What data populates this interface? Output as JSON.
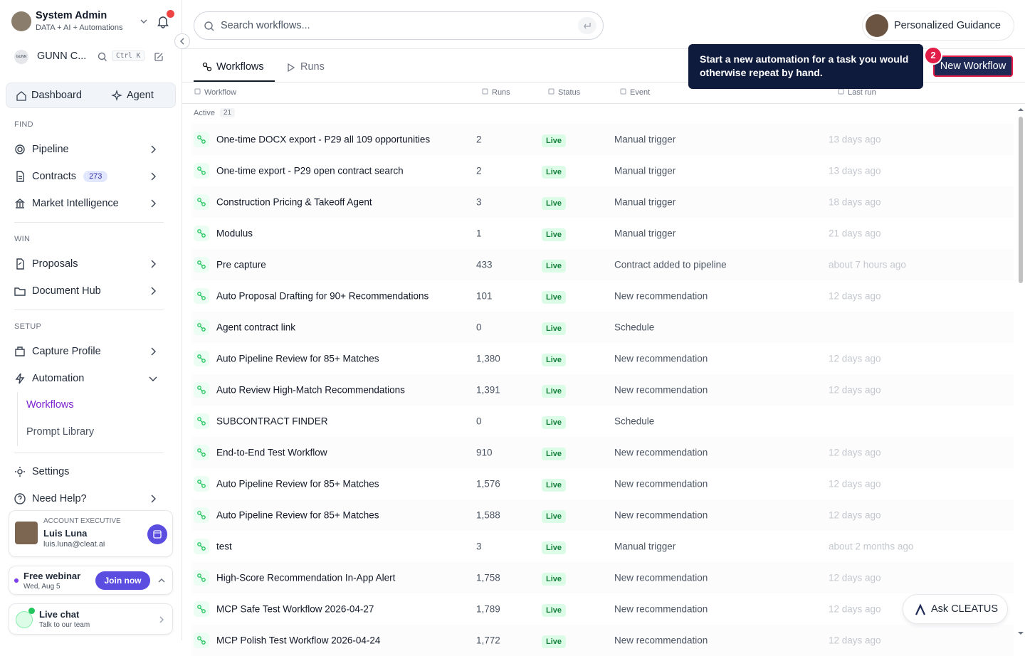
{
  "sidebar": {
    "user": {
      "name": "System Admin",
      "subtitle": "DATA + AI + Automations"
    },
    "org": {
      "logo": "GUNN",
      "name": "GUNN C...",
      "shortcut": "Ctrl K"
    },
    "tabs": [
      "Dashboard",
      "Agent"
    ],
    "sections": [
      {
        "label": "FIND",
        "items": [
          {
            "label": "Pipeline"
          },
          {
            "label": "Contracts",
            "badge": "273"
          },
          {
            "label": "Market Intelligence"
          }
        ]
      },
      {
        "label": "WIN",
        "items": [
          {
            "label": "Proposals"
          },
          {
            "label": "Document Hub"
          }
        ]
      },
      {
        "label": "SETUP",
        "items": [
          {
            "label": "Capture Profile"
          },
          {
            "label": "Automation",
            "children": [
              "Workflows",
              "Prompt Library"
            ]
          }
        ]
      }
    ],
    "footer_items": [
      "Settings",
      "Need Help?"
    ],
    "account": {
      "role": "ACCOUNT EXECUTIVE",
      "name": "Luis Luna",
      "email": "luis.luna@cleat.ai"
    },
    "webinar": {
      "title": "Free webinar",
      "date": "Wed, Aug 5",
      "action": "Join now"
    },
    "chat": {
      "title": "Live chat",
      "subtitle": "Talk to our team"
    }
  },
  "header": {
    "search_placeholder": "Search workflows...",
    "guidance": "Personalized Guidance"
  },
  "tabs": [
    "Workflows",
    "Runs"
  ],
  "action": {
    "new_workflow": "New Workflow",
    "step": "2",
    "tooltip": "Start a new automation for a task you would otherwise repeat by hand."
  },
  "table": {
    "columns": [
      "Workflow",
      "Runs",
      "Status",
      "Event",
      "Last run"
    ],
    "group": {
      "label": "Active",
      "count": "21"
    },
    "rows": [
      {
        "name": "One-time DOCX export - P29 all 109 opportunities",
        "runs": "2",
        "status": "Live",
        "event": "Manual trigger",
        "last_run": "13 days ago"
      },
      {
        "name": "One-time export - P29 open contract search",
        "runs": "2",
        "status": "Live",
        "event": "Manual trigger",
        "last_run": "13 days ago"
      },
      {
        "name": "Construction Pricing & Takeoff Agent",
        "runs": "3",
        "status": "Live",
        "event": "Manual trigger",
        "last_run": "18 days ago"
      },
      {
        "name": "Modulus",
        "runs": "1",
        "status": "Live",
        "event": "Manual trigger",
        "last_run": "21 days ago"
      },
      {
        "name": "Pre capture",
        "runs": "433",
        "status": "Live",
        "event": "Contract added to pipeline",
        "last_run": "about 7 hours ago"
      },
      {
        "name": "Auto Proposal Drafting for 90+ Recommendations",
        "runs": "101",
        "status": "Live",
        "event": "New recommendation",
        "last_run": "12 days ago"
      },
      {
        "name": "Agent contract link",
        "runs": "0",
        "status": "Live",
        "event": "Schedule"
      },
      {
        "name": "Auto Pipeline Review for 85+ Matches",
        "runs": "1,380",
        "status": "Live",
        "event": "New recommendation",
        "last_run": "12 days ago"
      },
      {
        "name": "Auto Review High-Match Recommendations",
        "runs": "1,391",
        "status": "Live",
        "event": "New recommendation",
        "last_run": "12 days ago"
      },
      {
        "name": "SUBCONTRACT FINDER",
        "runs": "0",
        "status": "Live",
        "event": "Schedule"
      },
      {
        "name": "End-to-End Test Workflow",
        "runs": "910",
        "status": "Live",
        "event": "New recommendation",
        "last_run": "12 days ago"
      },
      {
        "name": "Auto Pipeline Review for 85+ Matches",
        "runs": "1,576",
        "status": "Live",
        "event": "New recommendation",
        "last_run": "12 days ago"
      },
      {
        "name": "Auto Pipeline Review for 85+ Matches",
        "runs": "1,588",
        "status": "Live",
        "event": "New recommendation",
        "last_run": "12 days ago"
      },
      {
        "name": "test",
        "runs": "3",
        "status": "Live",
        "event": "Manual trigger",
        "last_run": "about 2 months ago"
      },
      {
        "name": "High-Score Recommendation In-App Alert",
        "runs": "1,758",
        "status": "Live",
        "event": "New recommendation",
        "last_run": "12 days ago"
      },
      {
        "name": "MCP Safe Test Workflow 2026-04-27",
        "runs": "1,789",
        "status": "Live",
        "event": "New recommendation",
        "last_run": "12 days ago"
      },
      {
        "name": "MCP Polish Test Workflow 2026-04-24",
        "runs": "1,772",
        "status": "Live",
        "event": "New recommendation",
        "last_run": "12 days ago"
      }
    ]
  },
  "assistant": {
    "label": "Ask CLEATUS"
  }
}
